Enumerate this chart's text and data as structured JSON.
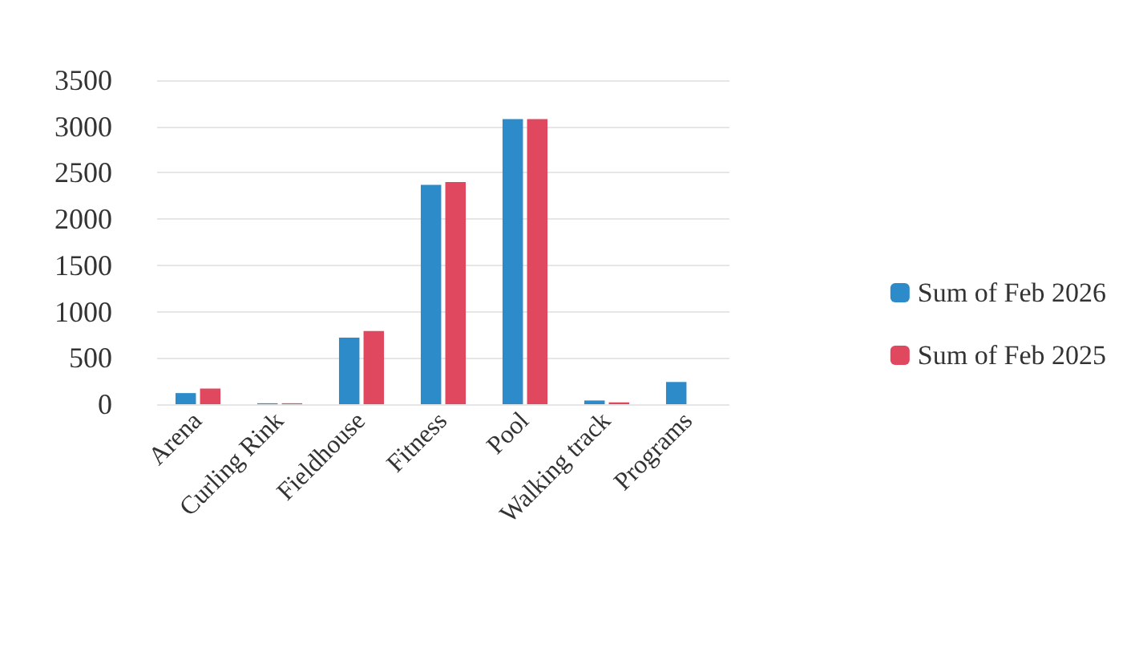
{
  "chart_data": {
    "type": "bar",
    "categories": [
      "Arena",
      "Curling Rink",
      "Fieldhouse",
      "Fitness",
      "Pool",
      "Walking track",
      "Programs"
    ],
    "series": [
      {
        "name": "Sum of Feb 2026",
        "color": "#2e8bc9",
        "values": [
          120,
          10,
          720,
          2370,
          3080,
          40,
          240
        ]
      },
      {
        "name": "Sum of Feb 2025",
        "color": "#e0485f",
        "values": [
          170,
          10,
          790,
          2400,
          3080,
          20,
          0
        ]
      }
    ],
    "ylim": [
      0,
      3500
    ],
    "yticks": [
      0,
      500,
      1000,
      1500,
      2000,
      2500,
      3000,
      3500
    ],
    "grid": "y",
    "legend": "right"
  }
}
